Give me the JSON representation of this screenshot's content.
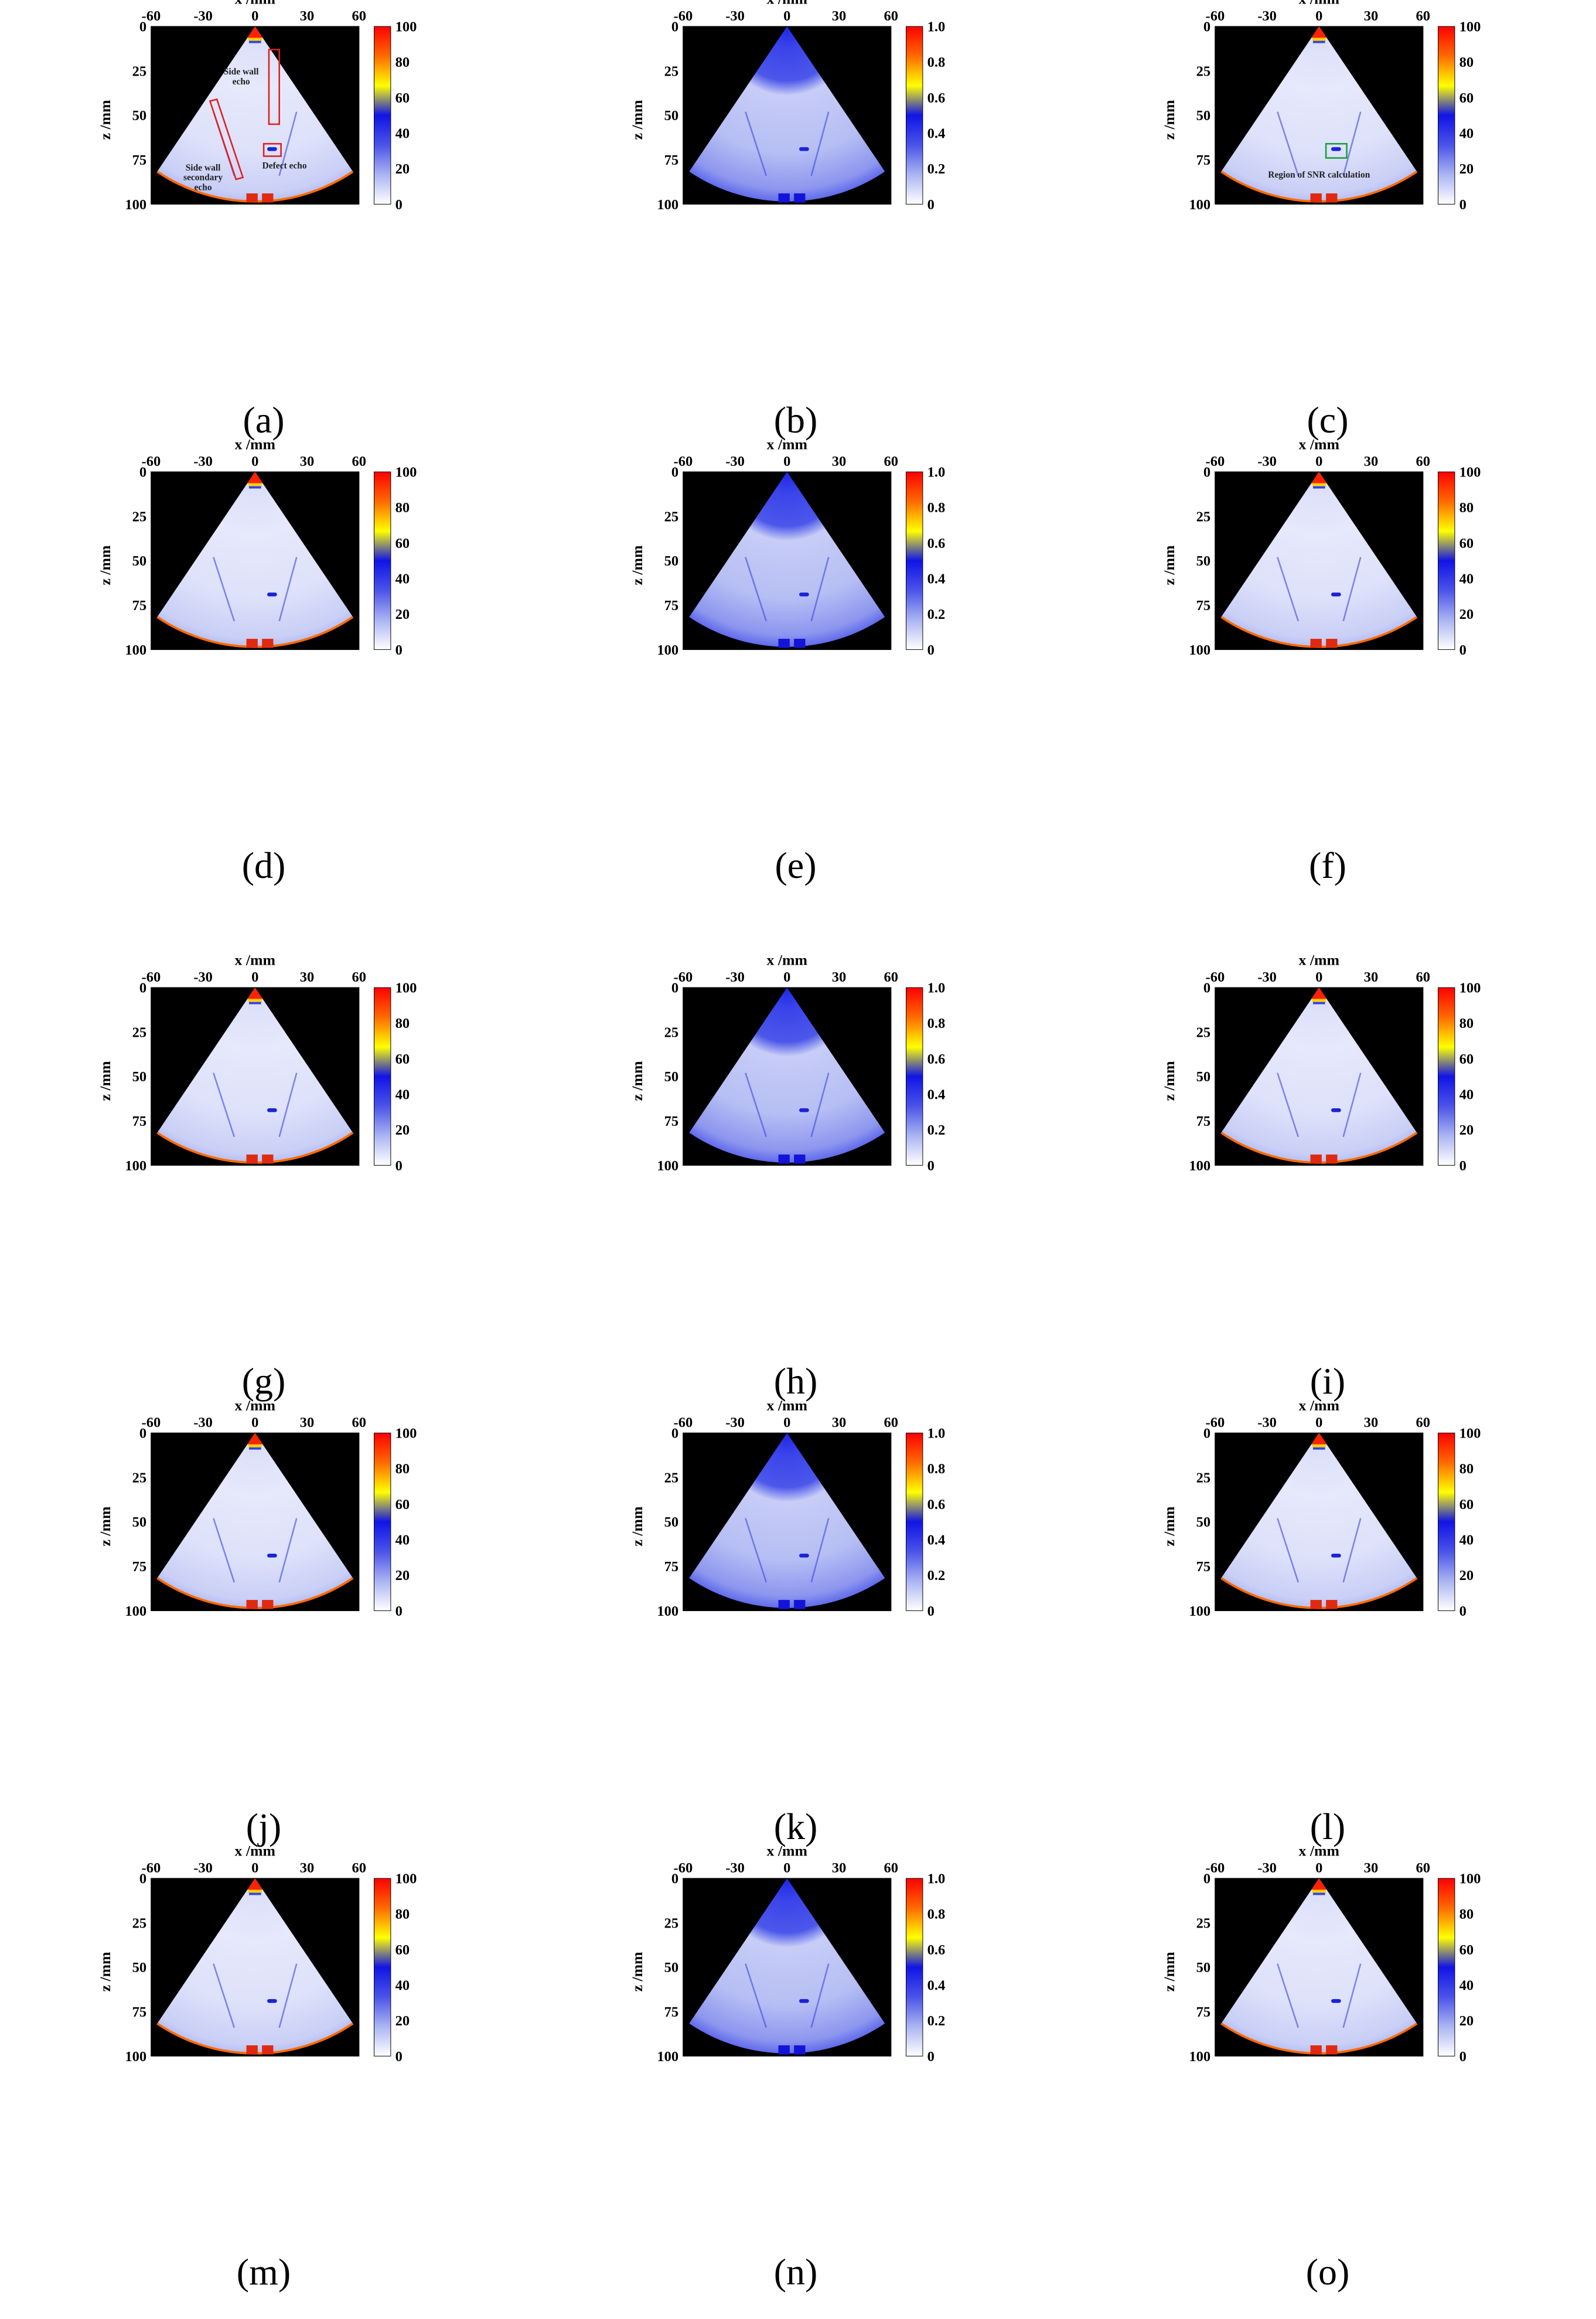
{
  "figure": {
    "captions": [
      "(a)",
      "(b)",
      "(c)",
      "(d)",
      "(e)",
      "(f)",
      "(g)",
      "(h)",
      "(i)",
      "(j)",
      "(k)",
      "(l)",
      "(m)",
      "(n)",
      "(o)"
    ],
    "colormap": [
      "#ffffff",
      "#aab4f2",
      "#4b53e8",
      "#1014e6",
      "#ffff00",
      "#ff6a00",
      "#ff0000"
    ]
  },
  "chart_data": [
    {
      "id": "a",
      "type": "heatmap",
      "xlabel": "x /mm",
      "ylabel": "z /mm",
      "x_ticks": [
        "-60",
        "-30",
        "0",
        "30",
        "60"
      ],
      "y_ticks": [
        "0",
        "25",
        "50",
        "75",
        "100"
      ],
      "xlim": [
        -60,
        60
      ],
      "ylim": [
        0,
        100
      ],
      "colorbar_ticks": [
        "100",
        "80",
        "60",
        "40",
        "20",
        "0"
      ],
      "colorbar_range": [
        0,
        100
      ],
      "focus_curve": true,
      "annotations": [
        {
          "label_lines": [
            "Side wall",
            "echo"
          ],
          "box": {
            "x": [
              8,
              14
            ],
            "z": [
              13,
              55
            ]
          },
          "label_at": {
            "x": -8,
            "z": 27
          },
          "color": "#e02020"
        },
        {
          "label_lines": [
            "Side wall",
            "secondary",
            "echo"
          ],
          "box_poly": [
            [
              -26,
              42
            ],
            [
              -22,
              41
            ],
            [
              -7,
              85
            ],
            [
              -11,
              86
            ]
          ],
          "label_at": {
            "x": -30,
            "z": 81
          },
          "color": "#e02020"
        },
        {
          "label_lines": [
            "Defect echo"
          ],
          "box": {
            "x": [
              5,
              15
            ],
            "z": [
              66,
              73
            ]
          },
          "label_at": {
            "x": 17,
            "z": 80
          },
          "color": "#e02020"
        }
      ]
    },
    {
      "id": "b",
      "type": "heatmap",
      "xlabel": "x /mm",
      "ylabel": "z /mm",
      "x_ticks": [
        "-60",
        "-30",
        "0",
        "30",
        "60"
      ],
      "y_ticks": [
        "0",
        "25",
        "50",
        "75",
        "100"
      ],
      "xlim": [
        -60,
        60
      ],
      "ylim": [
        0,
        100
      ],
      "colorbar_ticks": [
        "1.0",
        "0.8",
        "0.6",
        "0.4",
        "0.2",
        "0"
      ],
      "colorbar_range": [
        0,
        1
      ],
      "focus_curve": false,
      "annotations": []
    },
    {
      "id": "c",
      "type": "heatmap",
      "xlabel": "x /mm",
      "ylabel": "z /mm",
      "x_ticks": [
        "-60",
        "-30",
        "0",
        "30",
        "60"
      ],
      "y_ticks": [
        "0",
        "25",
        "50",
        "75",
        "100"
      ],
      "xlim": [
        -60,
        60
      ],
      "ylim": [
        0,
        100
      ],
      "colorbar_ticks": [
        "100",
        "80",
        "60",
        "40",
        "20",
        "0"
      ],
      "colorbar_range": [
        0,
        100
      ],
      "focus_curve": true,
      "annotations": [
        {
          "label_lines": [
            "Region of SNR calculation"
          ],
          "box": {
            "x": [
              4,
              16
            ],
            "z": [
              66,
              74
            ]
          },
          "label_at": {
            "x": 0,
            "z": 85
          },
          "color": "#1aa03a"
        }
      ]
    },
    {
      "id": "d",
      "type": "heatmap",
      "xlabel": "x /mm",
      "ylabel": "z /mm",
      "x_ticks": [
        "-60",
        "-30",
        "0",
        "30",
        "60"
      ],
      "y_ticks": [
        "0",
        "25",
        "50",
        "75",
        "100"
      ],
      "xlim": [
        -60,
        60
      ],
      "ylim": [
        0,
        100
      ],
      "colorbar_ticks": [
        "100",
        "80",
        "60",
        "40",
        "20",
        "0"
      ],
      "colorbar_range": [
        0,
        100
      ],
      "focus_curve": true,
      "annotations": []
    },
    {
      "id": "e",
      "type": "heatmap",
      "xlabel": "x /mm",
      "ylabel": "z /mm",
      "x_ticks": [
        "-60",
        "-30",
        "0",
        "30",
        "60"
      ],
      "y_ticks": [
        "0",
        "25",
        "50",
        "75",
        "100"
      ],
      "xlim": [
        -60,
        60
      ],
      "ylim": [
        0,
        100
      ],
      "colorbar_ticks": [
        "1.0",
        "0.8",
        "0.6",
        "0.4",
        "0.2",
        "0"
      ],
      "colorbar_range": [
        0,
        1
      ],
      "focus_curve": false,
      "annotations": []
    },
    {
      "id": "f",
      "type": "heatmap",
      "xlabel": "x /mm",
      "ylabel": "z /mm",
      "x_ticks": [
        "-60",
        "-30",
        "0",
        "30",
        "60"
      ],
      "y_ticks": [
        "0",
        "25",
        "50",
        "75",
        "100"
      ],
      "xlim": [
        -60,
        60
      ],
      "ylim": [
        0,
        100
      ],
      "colorbar_ticks": [
        "100",
        "80",
        "60",
        "40",
        "20",
        "0"
      ],
      "colorbar_range": [
        0,
        100
      ],
      "focus_curve": true,
      "annotations": []
    },
    {
      "id": "g",
      "type": "heatmap",
      "xlabel": "x /mm",
      "ylabel": "z /mm",
      "x_ticks": [
        "-60",
        "-30",
        "0",
        "30",
        "60"
      ],
      "y_ticks": [
        "0",
        "25",
        "50",
        "75",
        "100"
      ],
      "xlim": [
        -60,
        60
      ],
      "ylim": [
        0,
        100
      ],
      "colorbar_ticks": [
        "100",
        "80",
        "60",
        "40",
        "20",
        "0"
      ],
      "colorbar_range": [
        0,
        100
      ],
      "focus_curve": true,
      "annotations": []
    },
    {
      "id": "h",
      "type": "heatmap",
      "xlabel": "x /mm",
      "ylabel": "z /mm",
      "x_ticks": [
        "-60",
        "-30",
        "0",
        "30",
        "60"
      ],
      "y_ticks": [
        "0",
        "25",
        "50",
        "75",
        "100"
      ],
      "xlim": [
        -60,
        60
      ],
      "ylim": [
        0,
        100
      ],
      "colorbar_ticks": [
        "1.0",
        "0.8",
        "0.6",
        "0.4",
        "0.2",
        "0"
      ],
      "colorbar_range": [
        0,
        1
      ],
      "focus_curve": false,
      "annotations": []
    },
    {
      "id": "i",
      "type": "heatmap",
      "xlabel": "x /mm",
      "ylabel": "z /mm",
      "x_ticks": [
        "-60",
        "-30",
        "0",
        "30",
        "60"
      ],
      "y_ticks": [
        "0",
        "25",
        "50",
        "75",
        "100"
      ],
      "xlim": [
        -60,
        60
      ],
      "ylim": [
        0,
        100
      ],
      "colorbar_ticks": [
        "100",
        "80",
        "60",
        "40",
        "20",
        "0"
      ],
      "colorbar_range": [
        0,
        100
      ],
      "focus_curve": true,
      "annotations": []
    },
    {
      "id": "j",
      "type": "heatmap",
      "xlabel": "x /mm",
      "ylabel": "z /mm",
      "x_ticks": [
        "-60",
        "-30",
        "0",
        "30",
        "60"
      ],
      "y_ticks": [
        "0",
        "25",
        "50",
        "75",
        "100"
      ],
      "xlim": [
        -60,
        60
      ],
      "ylim": [
        0,
        100
      ],
      "colorbar_ticks": [
        "100",
        "80",
        "60",
        "40",
        "20",
        "0"
      ],
      "colorbar_range": [
        0,
        100
      ],
      "focus_curve": true,
      "annotations": []
    },
    {
      "id": "k",
      "type": "heatmap",
      "xlabel": "x /mm",
      "ylabel": "z /mm",
      "x_ticks": [
        "-60",
        "-30",
        "0",
        "30",
        "60"
      ],
      "y_ticks": [
        "0",
        "25",
        "50",
        "75",
        "100"
      ],
      "xlim": [
        -60,
        60
      ],
      "ylim": [
        0,
        100
      ],
      "colorbar_ticks": [
        "1.0",
        "0.8",
        "0.6",
        "0.4",
        "0.2",
        "0"
      ],
      "colorbar_range": [
        0,
        1
      ],
      "focus_curve": false,
      "annotations": []
    },
    {
      "id": "l",
      "type": "heatmap",
      "xlabel": "x /mm",
      "ylabel": "z /mm",
      "x_ticks": [
        "-60",
        "-30",
        "0",
        "30",
        "60"
      ],
      "y_ticks": [
        "0",
        "25",
        "50",
        "75",
        "100"
      ],
      "xlim": [
        -60,
        60
      ],
      "ylim": [
        0,
        100
      ],
      "colorbar_ticks": [
        "100",
        "80",
        "60",
        "40",
        "20",
        "0"
      ],
      "colorbar_range": [
        0,
        100
      ],
      "focus_curve": true,
      "annotations": []
    },
    {
      "id": "m",
      "type": "heatmap",
      "xlabel": "x /mm",
      "ylabel": "z /mm",
      "x_ticks": [
        "-60",
        "-30",
        "0",
        "30",
        "60"
      ],
      "y_ticks": [
        "0",
        "25",
        "50",
        "75",
        "100"
      ],
      "xlim": [
        -60,
        60
      ],
      "ylim": [
        0,
        100
      ],
      "colorbar_ticks": [
        "100",
        "80",
        "60",
        "40",
        "20",
        "0"
      ],
      "colorbar_range": [
        0,
        100
      ],
      "focus_curve": true,
      "annotations": []
    },
    {
      "id": "n",
      "type": "heatmap",
      "xlabel": "x /mm",
      "ylabel": "z /mm",
      "x_ticks": [
        "-60",
        "-30",
        "0",
        "30",
        "60"
      ],
      "y_ticks": [
        "0",
        "25",
        "50",
        "75",
        "100"
      ],
      "xlim": [
        -60,
        60
      ],
      "ylim": [
        0,
        100
      ],
      "colorbar_ticks": [
        "1.0",
        "0.8",
        "0.6",
        "0.4",
        "0.2",
        "0"
      ],
      "colorbar_range": [
        0,
        1
      ],
      "focus_curve": false,
      "annotations": []
    },
    {
      "id": "o",
      "type": "heatmap",
      "xlabel": "x /mm",
      "ylabel": "z /mm",
      "x_ticks": [
        "-60",
        "-30",
        "0",
        "30",
        "60"
      ],
      "y_ticks": [
        "0",
        "25",
        "50",
        "75",
        "100"
      ],
      "xlim": [
        -60,
        60
      ],
      "ylim": [
        0,
        100
      ],
      "colorbar_ticks": [
        "100",
        "80",
        "60",
        "40",
        "20",
        "0"
      ],
      "colorbar_range": [
        0,
        100
      ],
      "focus_curve": true,
      "annotations": []
    }
  ]
}
